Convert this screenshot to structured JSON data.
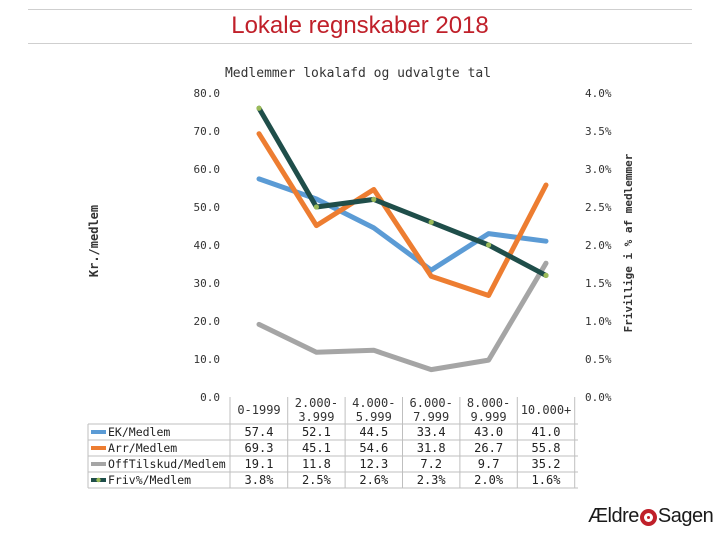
{
  "slide": {
    "title": "Lokale regnskaber 2018",
    "logo_left": "Ældre",
    "logo_right": "Sagen"
  },
  "chart_data": {
    "type": "line",
    "title": "Medlemmer lokalafd og udvalgte tal",
    "ylabel": "Kr./medlem",
    "y2label": "Frivillige i % af medlemmer",
    "ylim": [
      0,
      80
    ],
    "y2lim": [
      0,
      0.04
    ],
    "yticks": [
      "0.0",
      "10.0",
      "20.0",
      "30.0",
      "40.0",
      "50.0",
      "60.0",
      "70.0",
      "80.0"
    ],
    "y2ticks": [
      "0.0%",
      "0.5%",
      "1.0%",
      "1.5%",
      "2.0%",
      "2.5%",
      "3.0%",
      "3.5%",
      "4.0%"
    ],
    "grid": false,
    "categories": [
      "0-1999",
      "2.000-3.999",
      "4.000-5.999",
      "6.000-7.999",
      "8.000-9.999",
      "10.000+"
    ],
    "series": [
      {
        "name": "EK/Medlem",
        "axis": "left",
        "color": "#5b9bd5",
        "values": [
          57.4,
          52.1,
          44.5,
          33.4,
          43.0,
          41.0
        ],
        "labels": [
          "57.4",
          "52.1",
          "44.5",
          "33.4",
          "43.0",
          "41.0"
        ]
      },
      {
        "name": "Arr/Medlem",
        "axis": "left",
        "color": "#ed7d31",
        "values": [
          69.3,
          45.1,
          54.6,
          31.8,
          26.7,
          55.8
        ],
        "labels": [
          "69.3",
          "45.1",
          "54.6",
          "31.8",
          "26.7",
          "55.8"
        ]
      },
      {
        "name": "OffTilskud/Medlem",
        "axis": "left",
        "color": "#a5a5a5",
        "values": [
          19.1,
          11.8,
          12.3,
          7.2,
          9.7,
          35.2
        ],
        "labels": [
          "19.1",
          "11.8",
          "12.3",
          "7.2",
          "9.7",
          "35.2"
        ]
      },
      {
        "name": "Friv%/Medlem",
        "axis": "right",
        "color": "#1f4e4a",
        "marker_color": "#9bbb59",
        "values": [
          0.038,
          0.025,
          0.026,
          0.023,
          0.02,
          0.016
        ],
        "labels": [
          "3.8%",
          "2.5%",
          "2.6%",
          "2.3%",
          "2.0%",
          "1.6%"
        ]
      }
    ]
  }
}
